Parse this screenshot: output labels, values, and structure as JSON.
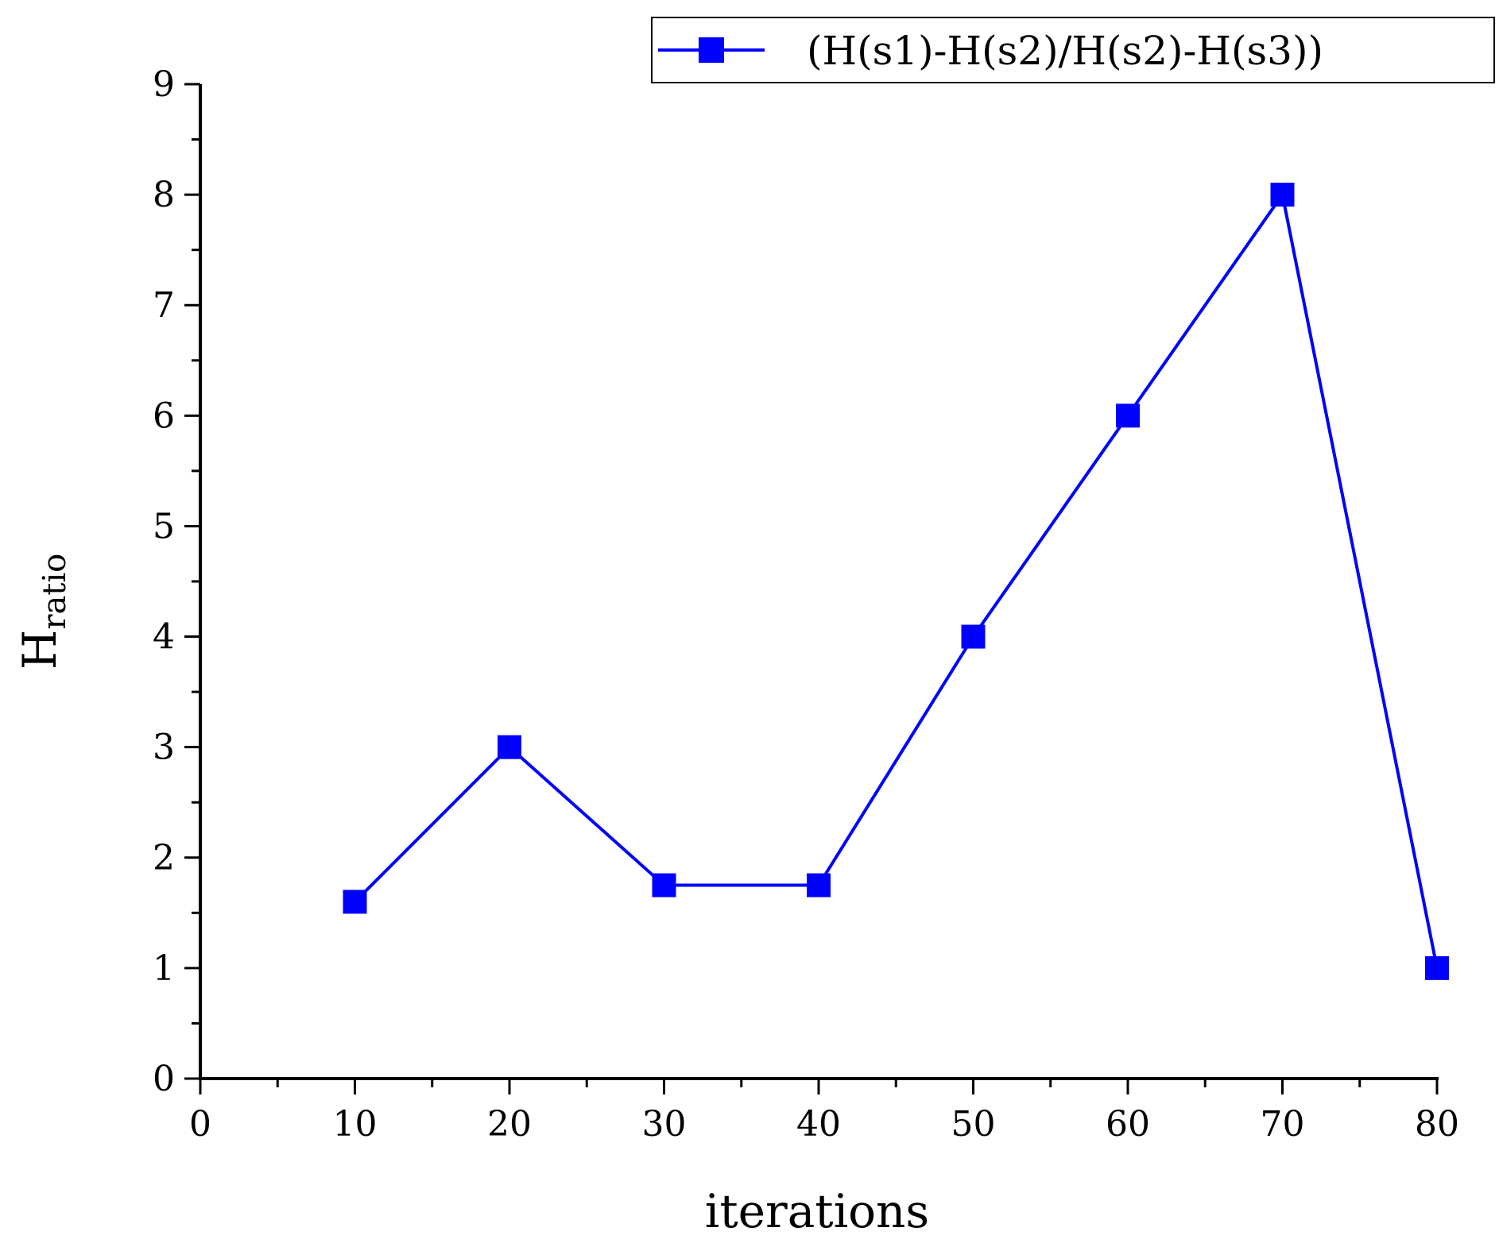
{
  "chart_data": {
    "type": "line",
    "xlabel": "iterations",
    "ylabel": "H",
    "ylabel_subscript": "ratio",
    "xlim": [
      0,
      80
    ],
    "ylim": [
      0,
      9
    ],
    "x_ticks": [
      0,
      10,
      20,
      30,
      40,
      50,
      60,
      70,
      80
    ],
    "y_ticks": [
      0,
      1,
      2,
      3,
      4,
      5,
      6,
      7,
      8,
      9
    ],
    "grid": false,
    "legend": "top-right",
    "series": [
      {
        "name": "(H(s1)-H(s2)/H(s2)-H(s3))",
        "color": "#0000ff",
        "marker": "square",
        "x": [
          10,
          20,
          30,
          40,
          50,
          60,
          70,
          80
        ],
        "y": [
          1.6,
          3,
          1.75,
          1.75,
          4,
          6,
          8,
          1
        ]
      }
    ]
  }
}
